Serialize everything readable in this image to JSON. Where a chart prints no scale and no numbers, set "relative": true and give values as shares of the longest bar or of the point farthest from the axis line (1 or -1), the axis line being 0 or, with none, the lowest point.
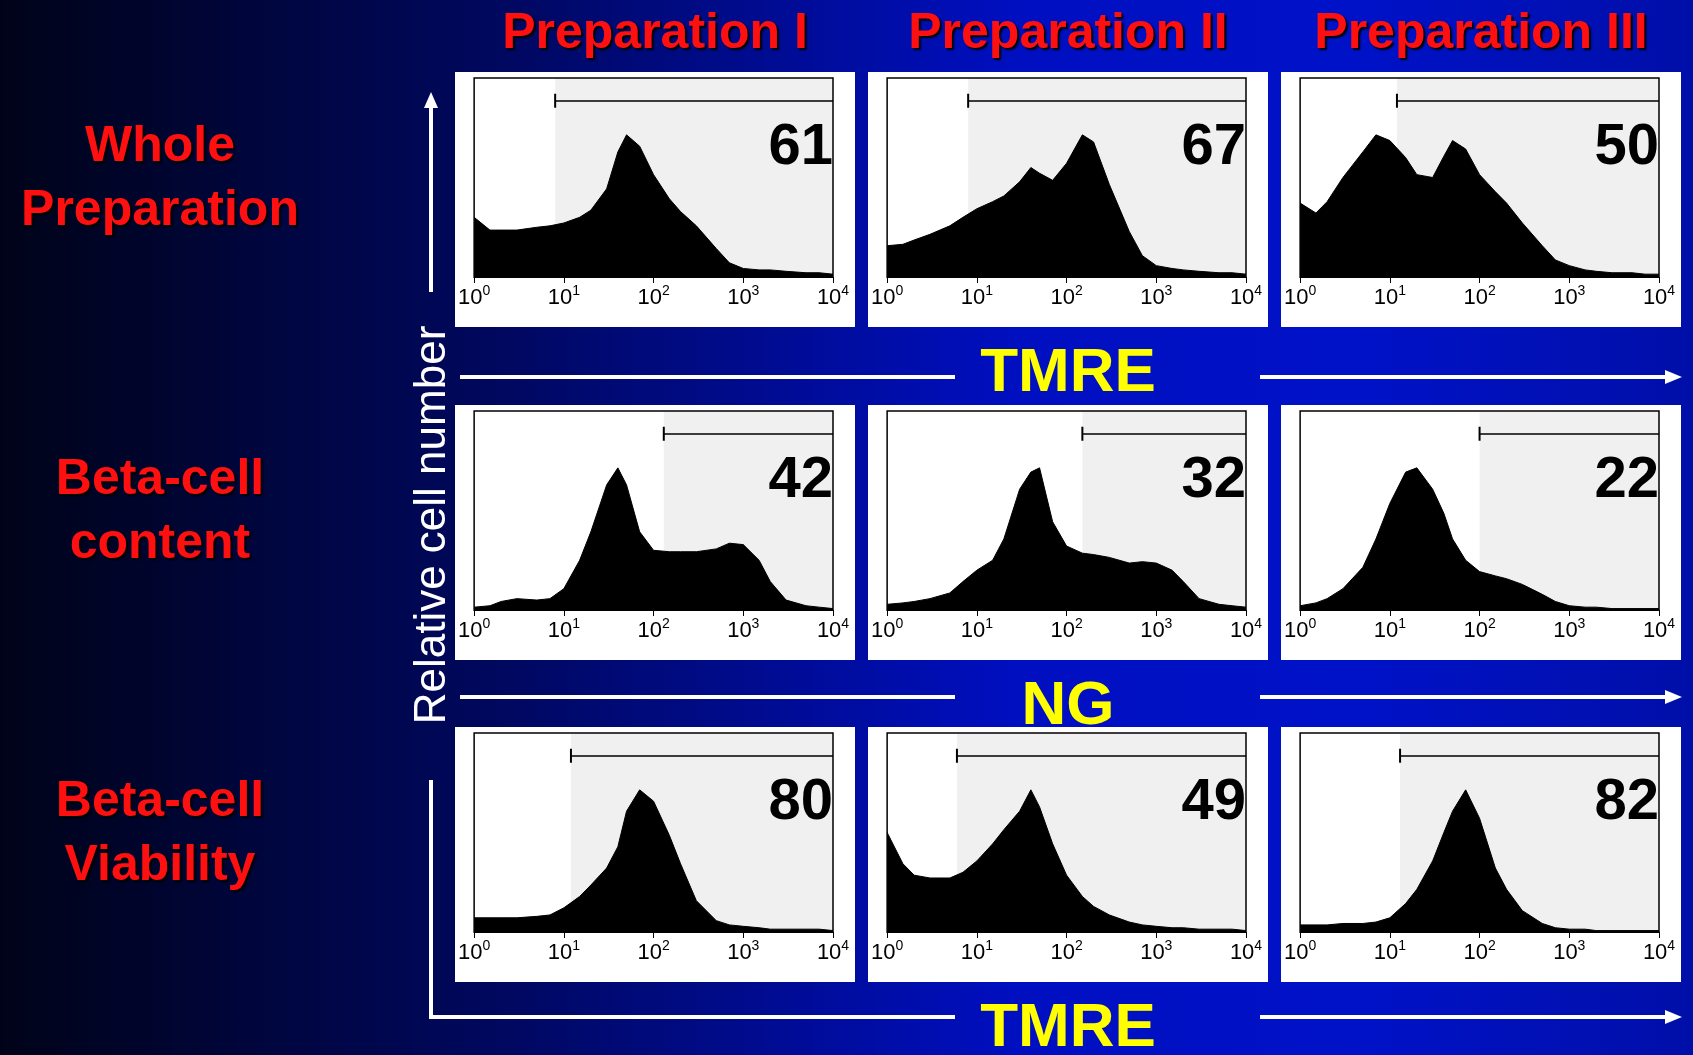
{
  "chart_data": [
    {
      "type": "area",
      "title": "Preparation I",
      "annotations": [
        "Whole Preparation"
      ],
      "bands": [
        {
          "axis": "x",
          "from": 8,
          "to": 10000,
          "label": "61"
        }
      ],
      "relative": true,
      "log": "x",
      "color": "#000000",
      "xlim": [
        1,
        10000
      ],
      "xticks": [
        {
          "value": 1,
          "label": "10$^{0}$"
        },
        {
          "value": 10,
          "label": "10$^{1}$"
        },
        {
          "value": 100,
          "label": "10$^{2}$"
        },
        {
          "value": 1000,
          "label": "10$^{3}$"
        },
        {
          "value": 10000,
          "label": "10$^{4}$"
        }
      ],
      "x": [
        1,
        1.5,
        2,
        3,
        5,
        7,
        10,
        15,
        20,
        30,
        40,
        50,
        70,
        100,
        150,
        200,
        300,
        500,
        700,
        1000,
        1500,
        2000,
        3000,
        5000,
        7000,
        10000
      ],
      "values": [
        0.42,
        0.33,
        0.33,
        0.33,
        0.35,
        0.36,
        0.38,
        0.42,
        0.47,
        0.62,
        0.88,
        1.0,
        0.92,
        0.72,
        0.55,
        0.46,
        0.36,
        0.2,
        0.1,
        0.06,
        0.05,
        0.05,
        0.04,
        0.03,
        0.03,
        0.02
      ]
    },
    {
      "type": "area",
      "title": "Preparation II",
      "xlabel": "TMRE",
      "bands": [
        {
          "axis": "x",
          "from": 8,
          "to": 10000,
          "label": "67"
        }
      ],
      "relative": true,
      "log": "x",
      "color": "#000000",
      "xlim": [
        1,
        10000
      ],
      "xticks": [
        {
          "value": 1,
          "label": "10$^{0}$"
        },
        {
          "value": 10,
          "label": "10$^{1}$"
        },
        {
          "value": 100,
          "label": "10$^{2}$"
        },
        {
          "value": 1000,
          "label": "10$^{3}$"
        },
        {
          "value": 10000,
          "label": "10$^{4}$"
        }
      ],
      "x": [
        1,
        1.5,
        2,
        3,
        5,
        7,
        10,
        15,
        20,
        30,
        40,
        50,
        70,
        100,
        150,
        200,
        300,
        500,
        700,
        1000,
        1500,
        2000,
        3000,
        5000,
        7000,
        10000
      ],
      "values": [
        0.22,
        0.23,
        0.26,
        0.3,
        0.36,
        0.42,
        0.48,
        0.53,
        0.57,
        0.67,
        0.77,
        0.73,
        0.68,
        0.8,
        1.0,
        0.95,
        0.65,
        0.32,
        0.15,
        0.08,
        0.06,
        0.05,
        0.04,
        0.03,
        0.03,
        0.02
      ]
    },
    {
      "type": "area",
      "title": "Preparation III",
      "bands": [
        {
          "axis": "x",
          "from": 12,
          "to": 10000,
          "label": "50"
        }
      ],
      "relative": true,
      "log": "x",
      "color": "#000000",
      "xlim": [
        1,
        10000
      ],
      "xticks": [
        {
          "value": 1,
          "label": "10$^{0}$"
        },
        {
          "value": 10,
          "label": "10$^{1}$"
        },
        {
          "value": 100,
          "label": "10$^{2}$"
        },
        {
          "value": 1000,
          "label": "10$^{3}$"
        },
        {
          "value": 10000,
          "label": "10$^{4}$"
        }
      ],
      "x": [
        1,
        1.5,
        2,
        3,
        5,
        7,
        10,
        15,
        20,
        30,
        40,
        50,
        70,
        100,
        150,
        200,
        300,
        500,
        700,
        1000,
        1500,
        2000,
        3000,
        5000,
        7000,
        10000
      ],
      "values": [
        0.52,
        0.45,
        0.53,
        0.7,
        0.88,
        1.0,
        0.96,
        0.84,
        0.72,
        0.7,
        0.85,
        0.96,
        0.9,
        0.72,
        0.6,
        0.52,
        0.38,
        0.22,
        0.12,
        0.08,
        0.05,
        0.04,
        0.03,
        0.03,
        0.02,
        0.02
      ]
    },
    {
      "type": "area",
      "annotations": [
        "Beta-cell content"
      ],
      "bands": [
        {
          "axis": "x",
          "from": 130,
          "to": 10000,
          "label": "42"
        }
      ],
      "ylabel": "Relative cell number",
      "relative": true,
      "log": "x",
      "color": "#000000",
      "xlim": [
        1,
        10000
      ],
      "xticks": [
        {
          "value": 1,
          "label": "10$^{0}$"
        },
        {
          "value": 10,
          "label": "10$^{1}$"
        },
        {
          "value": 100,
          "label": "10$^{2}$"
        },
        {
          "value": 1000,
          "label": "10$^{3}$"
        },
        {
          "value": 10000,
          "label": "10$^{4}$"
        }
      ],
      "x": [
        1,
        1.5,
        2,
        3,
        5,
        7,
        10,
        15,
        20,
        30,
        40,
        50,
        70,
        100,
        150,
        200,
        300,
        500,
        700,
        1000,
        1500,
        2000,
        3000,
        5000,
        7000,
        10000
      ],
      "values": [
        0.02,
        0.03,
        0.06,
        0.08,
        0.07,
        0.08,
        0.15,
        0.35,
        0.55,
        0.88,
        1.0,
        0.88,
        0.55,
        0.42,
        0.41,
        0.41,
        0.41,
        0.43,
        0.47,
        0.46,
        0.35,
        0.2,
        0.07,
        0.03,
        0.02,
        0.01
      ]
    },
    {
      "type": "area",
      "xlabel": "NG",
      "bands": [
        {
          "axis": "x",
          "from": 150,
          "to": 10000,
          "label": "32"
        }
      ],
      "relative": true,
      "log": "x",
      "color": "#000000",
      "xlim": [
        1,
        10000
      ],
      "xticks": [
        {
          "value": 1,
          "label": "10$^{0}$"
        },
        {
          "value": 10,
          "label": "10$^{1}$"
        },
        {
          "value": 100,
          "label": "10$^{2}$"
        },
        {
          "value": 1000,
          "label": "10$^{3}$"
        },
        {
          "value": 10000,
          "label": "10$^{4}$"
        }
      ],
      "x": [
        1,
        1.5,
        2,
        3,
        5,
        7,
        10,
        15,
        20,
        30,
        40,
        50,
        70,
        100,
        150,
        200,
        300,
        500,
        700,
        1000,
        1500,
        2000,
        3000,
        5000,
        7000,
        10000
      ],
      "values": [
        0.04,
        0.05,
        0.06,
        0.08,
        0.12,
        0.2,
        0.28,
        0.35,
        0.5,
        0.85,
        0.97,
        1.0,
        0.62,
        0.45,
        0.4,
        0.39,
        0.37,
        0.33,
        0.34,
        0.33,
        0.28,
        0.2,
        0.08,
        0.04,
        0.03,
        0.02
      ]
    },
    {
      "type": "area",
      "bands": [
        {
          "axis": "x",
          "from": 100,
          "to": 10000,
          "label": "22"
        }
      ],
      "relative": true,
      "log": "x",
      "color": "#000000",
      "xlim": [
        1,
        10000
      ],
      "xticks": [
        {
          "value": 1,
          "label": "10$^{0}$"
        },
        {
          "value": 10,
          "label": "10$^{1}$"
        },
        {
          "value": 100,
          "label": "10$^{2}$"
        },
        {
          "value": 1000,
          "label": "10$^{3}$"
        },
        {
          "value": 10000,
          "label": "10$^{4}$"
        }
      ],
      "x": [
        1,
        1.5,
        2,
        3,
        5,
        7,
        10,
        15,
        20,
        30,
        40,
        50,
        70,
        100,
        150,
        200,
        300,
        500,
        700,
        1000,
        1500,
        2000,
        3000,
        5000,
        7000,
        10000
      ],
      "values": [
        0.03,
        0.05,
        0.08,
        0.15,
        0.3,
        0.5,
        0.75,
        0.97,
        1.0,
        0.85,
        0.68,
        0.5,
        0.35,
        0.27,
        0.24,
        0.22,
        0.18,
        0.11,
        0.06,
        0.03,
        0.02,
        0.02,
        0.01,
        0.01,
        0.01,
        0.01
      ]
    },
    {
      "type": "area",
      "annotations": [
        "Beta-cell Viability"
      ],
      "bands": [
        {
          "axis": "x",
          "from": 12,
          "to": 10000,
          "label": "80"
        }
      ],
      "relative": true,
      "log": "x",
      "color": "#000000",
      "xlim": [
        1,
        10000
      ],
      "xticks": [
        {
          "value": 1,
          "label": "10$^{0}$"
        },
        {
          "value": 10,
          "label": "10$^{1}$"
        },
        {
          "value": 100,
          "label": "10$^{2}$"
        },
        {
          "value": 1000,
          "label": "10$^{3}$"
        },
        {
          "value": 10000,
          "label": "10$^{4}$"
        }
      ],
      "x": [
        1,
        1.5,
        2,
        3,
        5,
        7,
        10,
        15,
        20,
        30,
        40,
        50,
        70,
        100,
        150,
        200,
        300,
        500,
        700,
        1000,
        1500,
        2000,
        3000,
        5000,
        7000,
        10000
      ],
      "values": [
        0.1,
        0.1,
        0.1,
        0.1,
        0.11,
        0.12,
        0.17,
        0.25,
        0.33,
        0.45,
        0.6,
        0.85,
        1.0,
        0.92,
        0.68,
        0.48,
        0.22,
        0.08,
        0.05,
        0.04,
        0.03,
        0.02,
        0.02,
        0.02,
        0.02,
        0.01
      ]
    },
    {
      "type": "area",
      "xlabel": "TMRE",
      "bands": [
        {
          "axis": "x",
          "from": 6,
          "to": 10000,
          "label": "49"
        }
      ],
      "relative": true,
      "log": "x",
      "color": "#000000",
      "xlim": [
        1,
        10000
      ],
      "xticks": [
        {
          "value": 1,
          "label": "10$^{0}$"
        },
        {
          "value": 10,
          "label": "10$^{1}$"
        },
        {
          "value": 100,
          "label": "10$^{2}$"
        },
        {
          "value": 1000,
          "label": "10$^{3}$"
        },
        {
          "value": 10000,
          "label": "10$^{4}$"
        }
      ],
      "x": [
        1,
        1.5,
        2,
        3,
        5,
        7,
        10,
        15,
        20,
        30,
        40,
        50,
        70,
        100,
        150,
        200,
        300,
        500,
        700,
        1000,
        1500,
        2000,
        3000,
        5000,
        7000,
        10000
      ],
      "values": [
        0.7,
        0.48,
        0.4,
        0.38,
        0.38,
        0.42,
        0.5,
        0.62,
        0.72,
        0.85,
        1.0,
        0.88,
        0.62,
        0.4,
        0.25,
        0.18,
        0.12,
        0.07,
        0.05,
        0.04,
        0.03,
        0.03,
        0.02,
        0.02,
        0.02,
        0.01
      ]
    },
    {
      "type": "area",
      "bands": [
        {
          "axis": "x",
          "from": 13,
          "to": 10000,
          "label": "82"
        }
      ],
      "relative": true,
      "log": "x",
      "color": "#000000",
      "xlim": [
        1,
        10000
      ],
      "xticks": [
        {
          "value": 1,
          "label": "10$^{0}$"
        },
        {
          "value": 10,
          "label": "10$^{1}$"
        },
        {
          "value": 100,
          "label": "10$^{2}$"
        },
        {
          "value": 1000,
          "label": "10$^{3}$"
        },
        {
          "value": 10000,
          "label": "10$^{4}$"
        }
      ],
      "x": [
        1,
        1.5,
        2,
        3,
        5,
        7,
        10,
        15,
        20,
        30,
        40,
        50,
        70,
        100,
        150,
        200,
        300,
        500,
        700,
        1000,
        1500,
        2000,
        3000,
        5000,
        7000,
        10000
      ],
      "values": [
        0.05,
        0.05,
        0.05,
        0.06,
        0.06,
        0.07,
        0.1,
        0.2,
        0.3,
        0.5,
        0.7,
        0.85,
        1.0,
        0.8,
        0.45,
        0.3,
        0.15,
        0.06,
        0.03,
        0.02,
        0.02,
        0.01,
        0.01,
        0.01,
        0.01,
        0.01
      ]
    }
  ]
}
